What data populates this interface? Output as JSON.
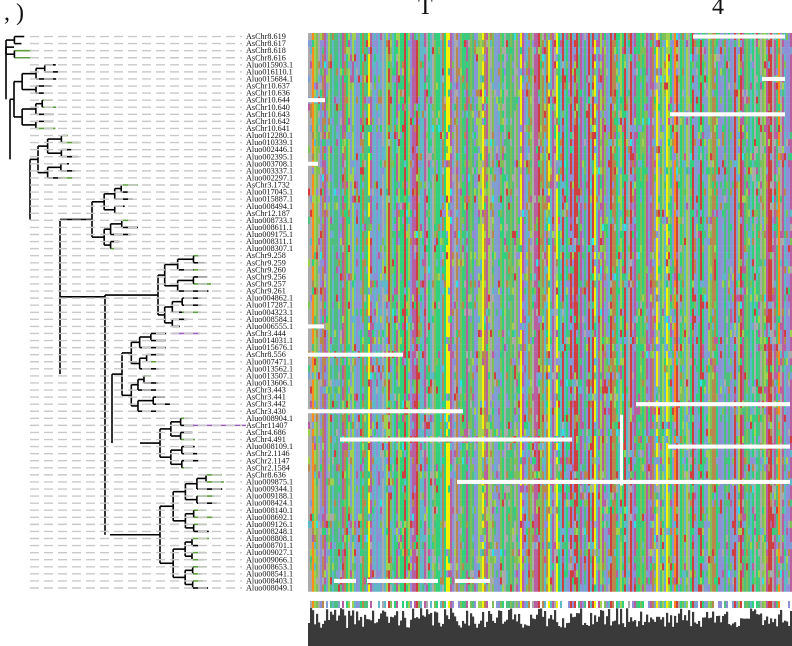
{
  "figure": {
    "panel_label": ", )",
    "title_fragment_left": "T",
    "title_fragment_right": "4"
  },
  "alignment": {
    "sequences": [
      "AsChr8.619",
      "AsChr8.617",
      "AsChr8.618",
      "AsChr8.616",
      "Aluo015903.1",
      "Aluo016110.1",
      "Aluo015684.1",
      "AsChr10.637",
      "AsChr10.636",
      "AsChr10.644",
      "AsChr10.640",
      "AsChr10.643",
      "AsChr10.642",
      "AsChr10.641",
      "Aluo012280.1",
      "Aluo010339.1",
      "Aluo002446.1",
      "Aluo002395.1",
      "Aluo003708.1",
      "Aluo003337.1",
      "Aluo002297.1",
      "AsChr3.1732",
      "Aluo017045.1",
      "Aluo015887.1",
      "Aluo008494.1",
      "AsChr12.187",
      "Aluo008733.1",
      "Aluo008611.1",
      "Aluo009175.1",
      "Aluo008311.1",
      "Aluo008307.1",
      "AsChr9.258",
      "AsChr9.259",
      "AsChr9.260",
      "AsChr9.256",
      "AsChr9.257",
      "AsChr9.261",
      "Aluo004862.1",
      "Aluo017287.1",
      "Aluo004323.1",
      "Aluo008584.1",
      "Aluo006555.1",
      "AsChr3.444",
      "Aluo014031.1",
      "Aluo015676.1",
      "AsChr8.556",
      "Aluo007471.1",
      "Aluo013562.1",
      "Aluo013507.1",
      "Aluo013606.1",
      "AsChr3.443",
      "AsChr3.441",
      "AsChr3.442",
      "AsChr3.430",
      "Aluo008904.1",
      "AsChr11407",
      "AsChr4.686",
      "AsChr4.491",
      "Aluo008109.1",
      "AsChr2.1146",
      "AsChr2.1147",
      "AsChr2.1584",
      "AsChr8.636",
      "Aluo009875.1",
      "Aluo009344.1",
      "Aluo009188.1",
      "Aluo008424.1",
      "Aluo008140.1",
      "Aluo008692.1",
      "Aluo009126.1",
      "Aluo008248.1",
      "Aluo008808.1",
      "Aluo008701.1",
      "Aluo009027.1",
      "Aluo009066.1",
      "Aluo008653.1",
      "Aluo008541.1",
      "Aluo008403.1",
      "Aluo008049.1"
    ],
    "gap_color": "#ffffff",
    "residue_colors": [
      "#7fbf5a",
      "#4fbf7f",
      "#2fd17c",
      "#9fd04f",
      "#8f8fd8",
      "#7f9fd0",
      "#b8894f",
      "#cf3f3f",
      "#b85f9f",
      "#5fb8c8",
      "#aaaaaa"
    ],
    "highlight_colors": [
      "#f2f200",
      "#ff8c1a",
      "#2fe0e0"
    ],
    "conservation_bar_color": "#3a3a3a"
  }
}
